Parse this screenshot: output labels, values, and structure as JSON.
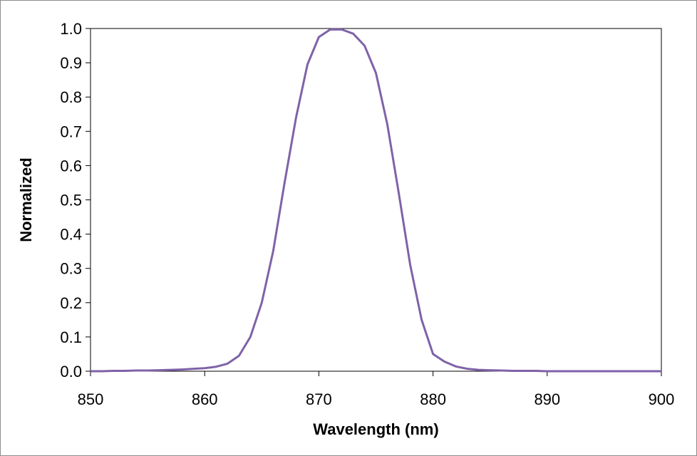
{
  "chart_data": {
    "type": "line",
    "title": "",
    "xlabel": "Wavelength (nm)",
    "ylabel": "Normalized",
    "xlim": [
      850,
      900
    ],
    "ylim": [
      0,
      1
    ],
    "x_ticks": [
      "850",
      "860",
      "870",
      "880",
      "890",
      "900"
    ],
    "y_ticks": [
      "0.0",
      "0.1",
      "0.2",
      "0.3",
      "0.4",
      "0.5",
      "0.6",
      "0.7",
      "0.8",
      "0.9",
      "1.0"
    ],
    "grid": false,
    "legend": "none",
    "series": [
      {
        "color": "#7f62a8",
        "x": [
          850,
          851,
          852,
          853,
          854,
          855,
          856,
          857,
          858,
          859,
          860,
          861,
          862,
          863,
          864,
          865,
          866,
          867,
          868,
          869,
          870,
          871,
          872,
          873,
          874,
          875,
          876,
          877,
          878,
          879,
          880,
          881,
          882,
          883,
          884,
          885,
          886,
          887,
          888,
          889,
          890,
          891,
          892,
          893,
          894,
          895,
          896,
          897,
          898,
          899,
          900
        ],
        "y": [
          0.0,
          0.0,
          0.001,
          0.001,
          0.002,
          0.002,
          0.003,
          0.004,
          0.005,
          0.007,
          0.009,
          0.013,
          0.022,
          0.045,
          0.1,
          0.2,
          0.35,
          0.55,
          0.74,
          0.895,
          0.975,
          0.997,
          0.997,
          0.985,
          0.95,
          0.87,
          0.72,
          0.52,
          0.31,
          0.15,
          0.05,
          0.028,
          0.014,
          0.007,
          0.004,
          0.003,
          0.002,
          0.001,
          0.001,
          0.001,
          0.0,
          0.0,
          0.0,
          0.0,
          0.0,
          0.0,
          0.0,
          0.0,
          0.0,
          0.0,
          0.0
        ]
      }
    ]
  }
}
